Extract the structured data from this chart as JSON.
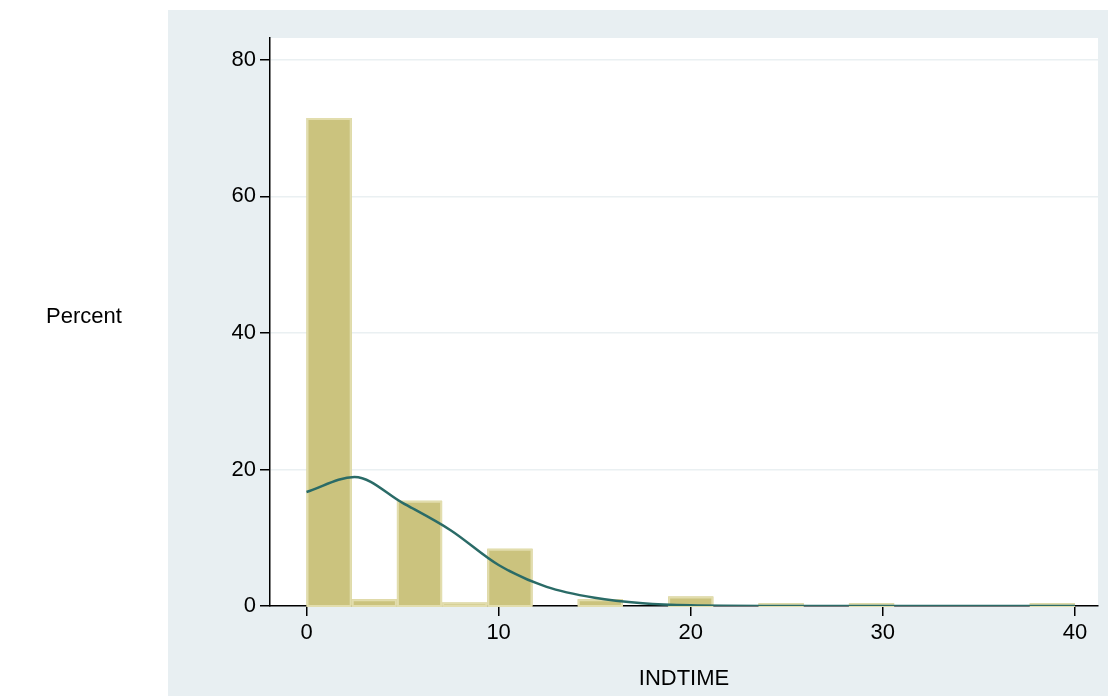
{
  "chart_data": {
    "type": "histogram",
    "xlabel": "INDTIME",
    "ylabel": "Percent",
    "bins": [
      0,
      2.353,
      4.706,
      7.059,
      9.412,
      11.765,
      14.118,
      16.471,
      18.824,
      21.176,
      23.529,
      25.882,
      28.235,
      30.588,
      32.941,
      35.294,
      37.647,
      40
    ],
    "series": [
      {
        "color": "#cbc37e",
        "values": [
          71.5,
          1,
          15.4,
          0.5,
          8.4,
          0,
          1,
          0,
          1.4,
          0,
          0.4,
          0,
          0.4,
          0,
          0,
          0,
          0.4
        ]
      },
      {
        "type": "line",
        "color": "#2a6b67",
        "x": [
          0,
          2.5,
          5,
          7.5,
          10,
          12.5,
          15,
          17.5,
          20,
          25,
          30,
          40
        ],
        "values": [
          16.7,
          18.9,
          15.1,
          11.1,
          6.0,
          2.8,
          1.2,
          0.4,
          0.1,
          0,
          0,
          0
        ]
      }
    ],
    "xlim": [
      -1.9,
      41.2
    ],
    "ylim": [
      0,
      83.2
    ],
    "xticks": [
      0,
      10,
      20,
      30,
      40
    ],
    "yticks": [
      0,
      20,
      40,
      60,
      80
    ],
    "grid": "y",
    "legend": false
  }
}
